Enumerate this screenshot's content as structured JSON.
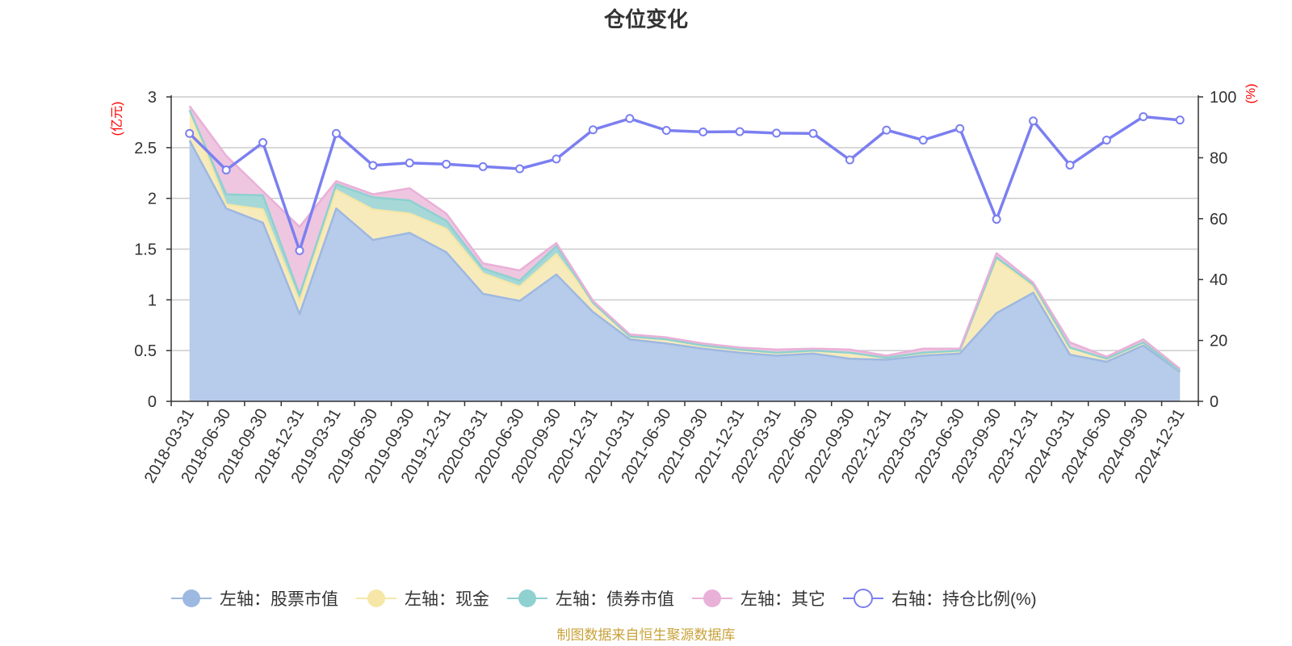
{
  "chart_data": {
    "type": "area",
    "title": "仓位变化",
    "left_unit": "(亿元)",
    "right_unit": "(%)",
    "left_axis": {
      "min": 0,
      "max": 3,
      "ticks": [
        0,
        0.5,
        1,
        1.5,
        2,
        2.5,
        3
      ],
      "tick_labels": [
        "0",
        "0.5",
        "1",
        "1.5",
        "2",
        "2.5",
        "3"
      ]
    },
    "right_axis": {
      "min": 0,
      "max": 100,
      "ticks": [
        0,
        20,
        40,
        60,
        80,
        100
      ],
      "tick_labels": [
        "0",
        "20",
        "40",
        "60",
        "80",
        "100"
      ]
    },
    "categories": [
      "2018-03-31",
      "2018-06-30",
      "2018-09-30",
      "2018-12-31",
      "2019-03-31",
      "2019-06-30",
      "2019-09-30",
      "2019-12-31",
      "2020-03-31",
      "2020-06-30",
      "2020-09-30",
      "2020-12-31",
      "2021-03-31",
      "2021-06-30",
      "2021-09-30",
      "2021-12-31",
      "2022-03-31",
      "2022-06-30",
      "2022-09-30",
      "2022-12-31",
      "2023-03-31",
      "2023-06-30",
      "2023-09-30",
      "2023-12-31",
      "2024-03-31",
      "2024-06-30",
      "2024-09-30",
      "2024-12-31"
    ],
    "series": [
      {
        "name": "左轴：股票市值",
        "axis": "left",
        "stack": true,
        "color": "#9db8e1",
        "fill": "#b7cbea",
        "values": [
          2.57,
          1.9,
          1.76,
          0.86,
          1.9,
          1.59,
          1.66,
          1.47,
          1.06,
          0.99,
          1.25,
          0.88,
          0.61,
          0.57,
          0.52,
          0.48,
          0.45,
          0.47,
          0.42,
          0.41,
          0.45,
          0.47,
          0.87,
          1.07,
          0.46,
          0.39,
          0.55,
          0.29
        ]
      },
      {
        "name": "左轴：现金",
        "axis": "left",
        "stack": true,
        "color": "#f6e7a8",
        "fill": "#f8ebbb",
        "values": [
          0.3,
          0.04,
          0.13,
          0.12,
          0.18,
          0.3,
          0.19,
          0.23,
          0.2,
          0.14,
          0.2,
          0.09,
          0.03,
          0.04,
          0.03,
          0.03,
          0.03,
          0.03,
          0.06,
          0.02,
          0.03,
          0.03,
          0.52,
          0.06,
          0.07,
          0.03,
          0.03,
          0.01
        ]
      },
      {
        "name": "左轴：债券市值",
        "axis": "left",
        "stack": true,
        "color": "#8fd0d0",
        "fill": "#a6d8d8",
        "values": [
          0.0,
          0.1,
          0.14,
          0.07,
          0.06,
          0.12,
          0.13,
          0.08,
          0.05,
          0.06,
          0.08,
          0.0,
          0.0,
          0.0,
          0.0,
          0.0,
          0.0,
          0.0,
          0.0,
          0.0,
          0.0,
          0.0,
          0.03,
          0.02,
          0.0,
          0.0,
          0.0,
          0.0
        ]
      },
      {
        "name": "左轴：其它",
        "axis": "left",
        "stack": true,
        "color": "#e9b0d8",
        "fill": "#eec6e0",
        "values": [
          0.04,
          0.38,
          0.04,
          0.67,
          0.03,
          0.03,
          0.12,
          0.07,
          0.05,
          0.1,
          0.03,
          0.02,
          0.02,
          0.02,
          0.02,
          0.02,
          0.03,
          0.02,
          0.03,
          0.02,
          0.04,
          0.02,
          0.04,
          0.02,
          0.05,
          0.02,
          0.03,
          0.02
        ]
      },
      {
        "name": "右轴：持仓比例(%)",
        "axis": "right",
        "stack": false,
        "color": "#7b7ff0",
        "values": [
          88.0,
          76.0,
          85.0,
          49.5,
          88.0,
          77.5,
          78.3,
          77.9,
          77.1,
          76.4,
          79.6,
          89.2,
          92.9,
          89.0,
          88.5,
          88.6,
          88.1,
          88.0,
          79.3,
          89.1,
          85.8,
          89.6,
          59.8,
          92.1,
          77.6,
          85.8,
          93.5,
          92.4
        ]
      }
    ]
  },
  "footer": {
    "source": "制图数据来自恒生聚源数据库"
  }
}
